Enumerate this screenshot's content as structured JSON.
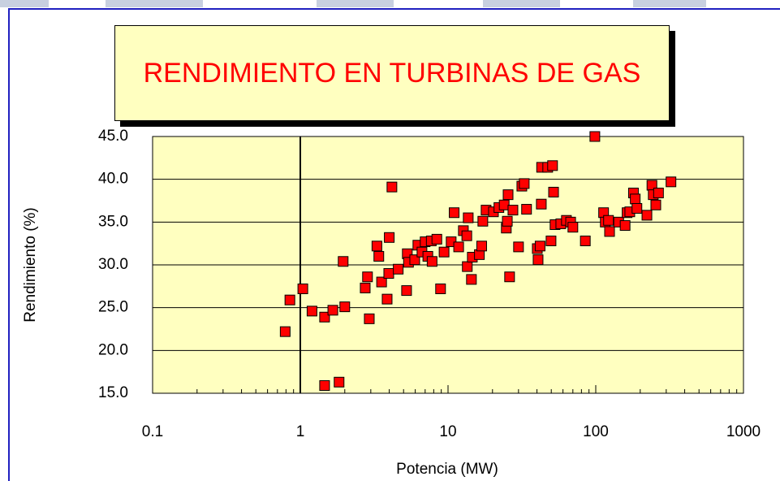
{
  "chart_data": {
    "type": "scatter",
    "title": "RENDIMIENTO EN TURBINAS DE GAS",
    "x_label": "Potencia (MW)",
    "y_label": "Rendimiento (%)",
    "xscale": "log",
    "xlim": [
      0.1,
      1000
    ],
    "xticks": [
      0.1,
      1,
      10,
      100,
      1000
    ],
    "ylim": [
      15,
      45
    ],
    "yticks": [
      {
        "value": 15,
        "label": "15.0"
      },
      {
        "value": 20,
        "label": "20.0"
      },
      {
        "value": 25,
        "label": "25.0"
      },
      {
        "value": 30,
        "label": "30.0"
      },
      {
        "value": 35,
        "label": "35.0"
      },
      {
        "value": 40,
        "label": "40.0"
      },
      {
        "value": 45,
        "label": "45.0"
      }
    ],
    "grid": true,
    "color": "#ff0000",
    "x": [
      0.79,
      0.85,
      1.04,
      1.2,
      1.46,
      1.66,
      1.46,
      1.83,
      2.0,
      1.95,
      2.75,
      2.85,
      2.93,
      3.3,
      3.4,
      3.55,
      3.87,
      3.97,
      4.0,
      4.17,
      4.6,
      5.24,
      5.3,
      5.4,
      5.95,
      6.25,
      6.66,
      7.0,
      7.3,
      7.7,
      7.8,
      8.4,
      8.9,
      9.4,
      10.5,
      11,
      11.8,
      12.7,
      13.4,
      13.5,
      13.7,
      14.4,
      14.6,
      16.3,
      16.9,
      17.2,
      18.1,
      20.3,
      22.1,
      24,
      24.8,
      25.2,
      25.5,
      26.1,
      27.5,
      30,
      31.6,
      32.8,
      34,
      40.2,
      40.7,
      42,
      42.8,
      43,
      47.3,
      49.8,
      51,
      51.8,
      53,
      58,
      63.3,
      67.6,
      70,
      85,
      98.6,
      113,
      116,
      122,
      124,
      143,
      158,
      163,
      170,
      180,
      185,
      190,
      222,
      240,
      245,
      255,
      266,
      323
    ],
    "y": [
      22.2,
      25.9,
      27.2,
      24.6,
      23.9,
      24.7,
      15.9,
      16.3,
      25.1,
      30.4,
      27.3,
      28.6,
      23.7,
      32.2,
      31.0,
      28.0,
      26.0,
      29.0,
      33.2,
      39.1,
      29.5,
      27.0,
      31.3,
      30.3,
      30.6,
      32.3,
      31.5,
      32.7,
      31.0,
      32.8,
      30.4,
      33.0,
      27.2,
      31.5,
      32.7,
      36.1,
      32.1,
      34.0,
      33.4,
      29.8,
      35.5,
      28.3,
      30.9,
      31.2,
      32.2,
      35.1,
      36.4,
      36.2,
      36.7,
      37.0,
      34.3,
      35.1,
      38.2,
      28.6,
      36.4,
      32.1,
      39.2,
      39.5,
      36.5,
      31.9,
      30.6,
      32.2,
      37.1,
      41.4,
      41.4,
      32.8,
      41.6,
      38.5,
      34.7,
      34.8,
      35.2,
      35.0,
      34.4,
      32.8,
      45.0,
      36.1,
      35.0,
      35.2,
      33.9,
      35.0,
      34.6,
      36.1,
      36.2,
      38.4,
      37.7,
      36.6,
      35.8,
      39.3,
      38.2,
      37.0,
      38.4,
      39.7
    ]
  }
}
